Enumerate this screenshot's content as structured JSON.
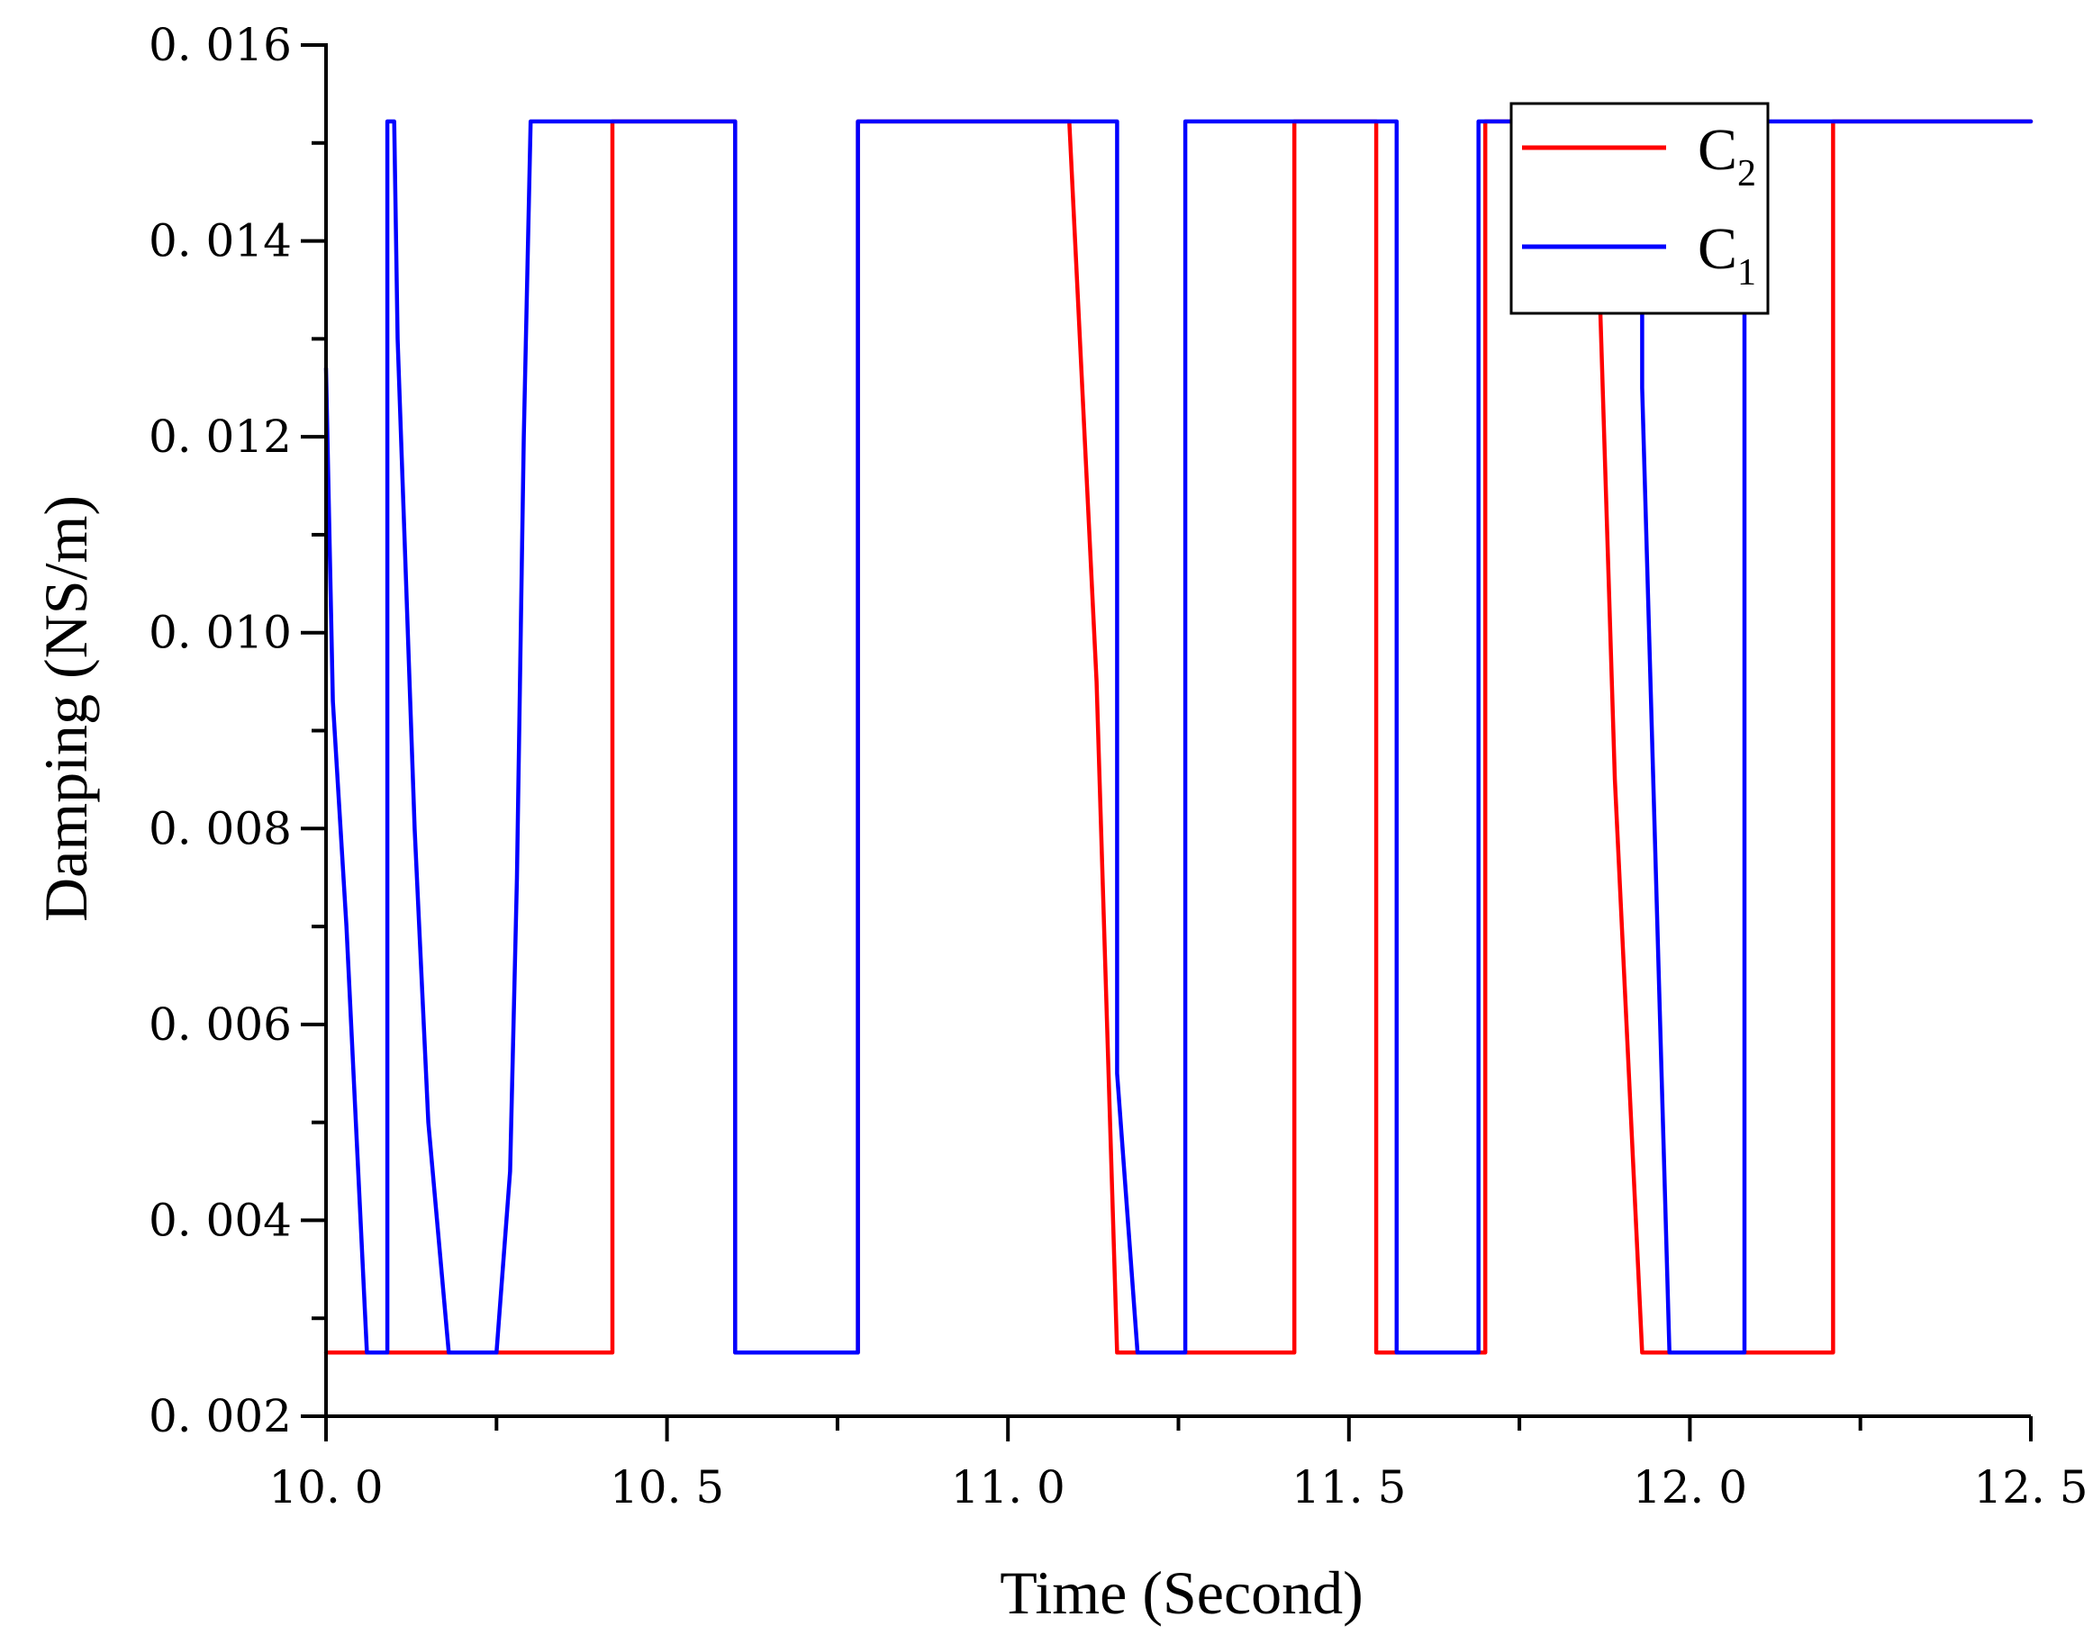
{
  "chart_data": {
    "type": "line",
    "title": "",
    "xlabel": "Time (Second)",
    "ylabel": "Damping (NS/m)",
    "xlim": [
      10.0,
      12.5
    ],
    "ylim": [
      0.002,
      0.016
    ],
    "xticks": [
      10.0,
      10.5,
      11.0,
      11.5,
      12.0,
      12.5
    ],
    "xtick_labels": [
      "10. 0",
      "10. 5",
      "11. 0",
      "11. 5",
      "12. 0",
      "12. 5"
    ],
    "yticks": [
      0.002,
      0.004,
      0.006,
      0.008,
      0.01,
      0.012,
      0.014,
      0.016
    ],
    "ytick_labels": [
      "0. 002",
      "0. 004",
      "0. 006",
      "0. 008",
      "0. 010",
      "0. 012",
      "0. 014",
      "0. 016"
    ],
    "grid": false,
    "legend_position": "top-right",
    "series": [
      {
        "name": "C2",
        "label_main": "C",
        "label_sub": "2",
        "color": "#ff0000",
        "x": [
          10.0,
          10.42,
          10.42,
          10.6,
          10.6,
          10.78,
          10.78,
          11.09,
          11.13,
          11.16,
          11.42,
          11.42,
          11.54,
          11.54,
          11.7,
          11.7,
          11.86,
          11.89,
          11.93,
          12.21,
          12.21,
          12.5
        ],
        "y": [
          0.00265,
          0.00265,
          0.01522,
          0.01522,
          0.00265,
          0.00265,
          0.01522,
          0.01522,
          0.0095,
          0.00265,
          0.00265,
          0.01522,
          0.01522,
          0.00265,
          0.00265,
          0.01522,
          0.01522,
          0.0085,
          0.00265,
          0.00265,
          0.01522,
          0.01522
        ]
      },
      {
        "name": "C1",
        "label_main": "C",
        "label_sub": "1",
        "color": "#0000ff",
        "x": [
          10.0,
          10.01,
          10.03,
          10.06,
          10.09,
          10.09,
          10.1,
          10.105,
          10.13,
          10.15,
          10.18,
          10.25,
          10.27,
          10.28,
          10.29,
          10.3,
          10.6,
          10.6,
          10.78,
          10.78,
          11.16,
          11.16,
          11.19,
          11.26,
          11.26,
          11.57,
          11.57,
          11.69,
          11.69,
          11.93,
          11.93,
          11.97,
          12.08,
          12.08,
          12.5
        ],
        "y": [
          0.0127,
          0.0093,
          0.007,
          0.00265,
          0.00265,
          0.01522,
          0.01522,
          0.013,
          0.008,
          0.005,
          0.00265,
          0.00265,
          0.0045,
          0.0075,
          0.012,
          0.01522,
          0.01522,
          0.00265,
          0.00265,
          0.01522,
          0.01522,
          0.0055,
          0.00265,
          0.00265,
          0.01522,
          0.01522,
          0.00265,
          0.00265,
          0.01522,
          0.01522,
          0.0125,
          0.00265,
          0.00265,
          0.01522,
          0.01522
        ]
      }
    ],
    "legend_order": [
      "C2",
      "C1"
    ]
  }
}
